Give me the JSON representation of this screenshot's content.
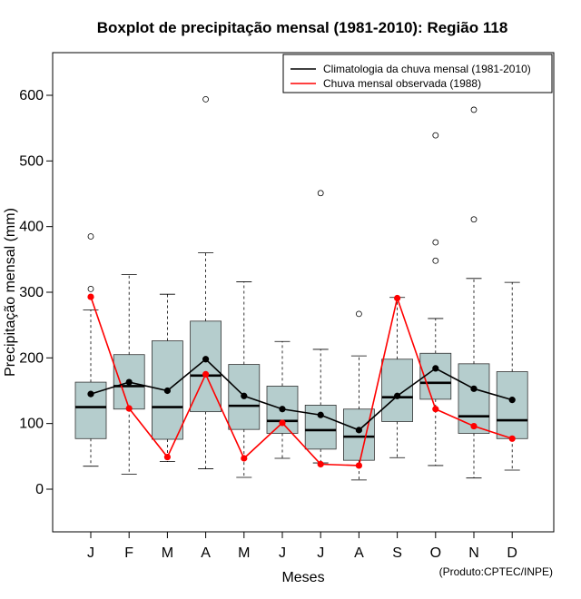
{
  "chart_data": {
    "type": "boxplot",
    "title": "Boxplot de precipitação mensal (1981-2010): Região 118",
    "xlabel": "Meses",
    "ylabel": "Precipitação mensal (mm)",
    "ylim": [
      -65,
      665
    ],
    "yticks": [
      0,
      100,
      200,
      300,
      400,
      500,
      600
    ],
    "categories": [
      "J",
      "F",
      "M",
      "A",
      "M",
      "J",
      "J",
      "A",
      "S",
      "O",
      "N",
      "D"
    ],
    "boxes": [
      {
        "min": 35,
        "q1": 77,
        "median": 125,
        "q3": 163,
        "max": 273,
        "outliers": [
          305,
          385
        ]
      },
      {
        "min": 23,
        "q1": 122,
        "median": 157,
        "q3": 205,
        "max": 327,
        "outliers": []
      },
      {
        "min": 42,
        "q1": 76,
        "median": 125,
        "q3": 226,
        "max": 297,
        "outliers": []
      },
      {
        "min": 31,
        "q1": 118,
        "median": 173,
        "q3": 256,
        "max": 360,
        "outliers": [
          594
        ]
      },
      {
        "min": 18,
        "q1": 91,
        "median": 127,
        "q3": 190,
        "max": 316,
        "outliers": []
      },
      {
        "min": 47,
        "q1": 85,
        "median": 104,
        "q3": 157,
        "max": 225,
        "outliers": []
      },
      {
        "min": 40,
        "q1": 61,
        "median": 90,
        "q3": 128,
        "max": 213,
        "outliers": [
          451
        ]
      },
      {
        "min": 14,
        "q1": 44,
        "median": 80,
        "q3": 122,
        "max": 203,
        "outliers": [
          267
        ]
      },
      {
        "min": 48,
        "q1": 103,
        "median": 140,
        "q3": 198,
        "max": 292,
        "outliers": []
      },
      {
        "min": 36,
        "q1": 137,
        "median": 162,
        "q3": 207,
        "max": 260,
        "outliers": [
          348,
          376,
          539
        ]
      },
      {
        "min": 17,
        "q1": 85,
        "median": 111,
        "q3": 191,
        "max": 321,
        "outliers": [
          411,
          578
        ]
      },
      {
        "min": 29,
        "q1": 77,
        "median": 105,
        "q3": 179,
        "max": 315,
        "outliers": []
      }
    ],
    "series": [
      {
        "name": "Climatologia da chuva mensal (1981-2010)",
        "color": "#000000",
        "values": [
          145,
          163,
          150,
          198,
          142,
          122,
          113,
          90,
          142,
          184,
          153,
          136
        ]
      },
      {
        "name": "Chuva mensal observada (1988)",
        "color": "#ff0000",
        "values": [
          293,
          123,
          49,
          175,
          47,
          101,
          38,
          36,
          291,
          122,
          96,
          77
        ]
      }
    ],
    "legend_position": "top-right",
    "credit": "(Produto:CPTEC/INPE)",
    "box_color": "#b5cdcd"
  }
}
